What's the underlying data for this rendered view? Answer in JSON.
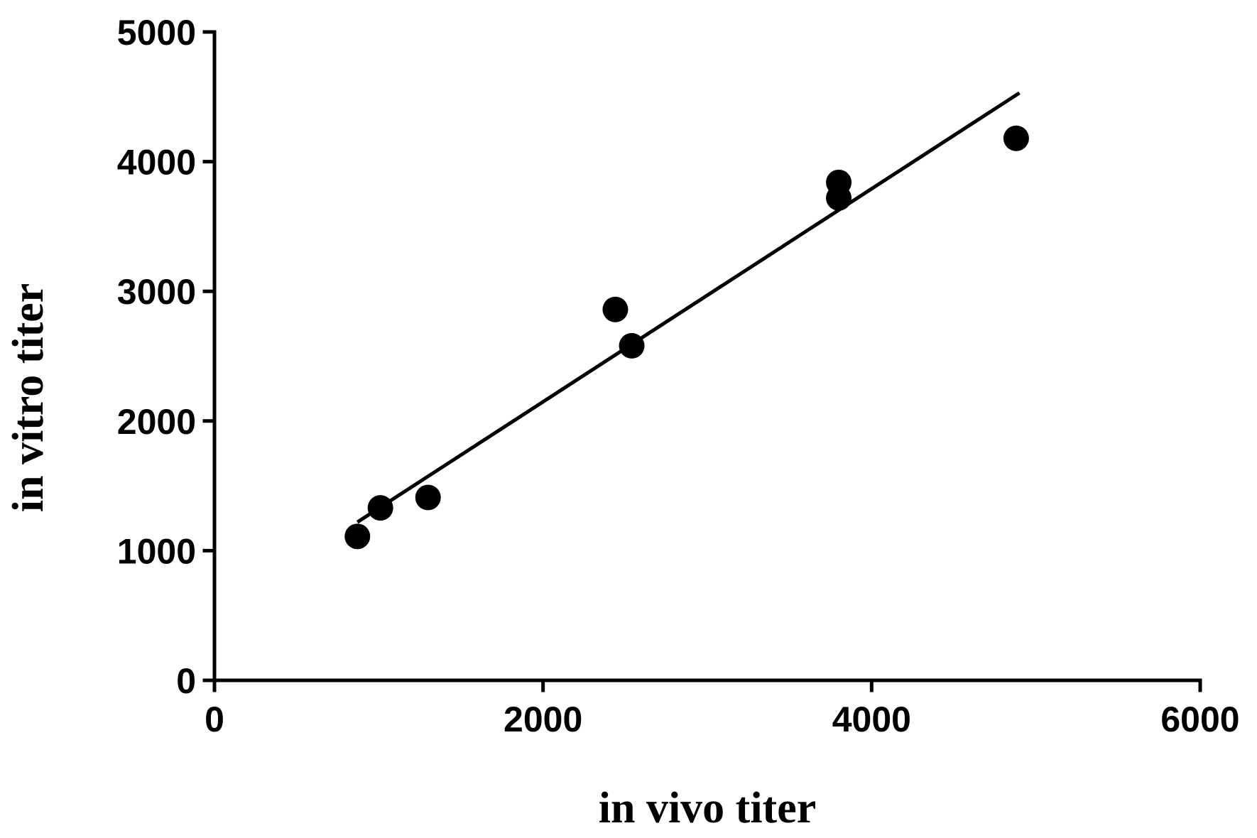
{
  "chart_data": {
    "type": "scatter",
    "xlabel": "in vivo titer",
    "ylabel": "in vitro titer",
    "xlim": [
      0,
      6000
    ],
    "ylim": [
      0,
      5000
    ],
    "x_ticks": [
      0,
      2000,
      4000,
      6000
    ],
    "y_ticks": [
      0,
      1000,
      2000,
      3000,
      4000,
      5000
    ],
    "x_tick_labels": [
      "0",
      "2000",
      "4000",
      "6000"
    ],
    "y_tick_labels": [
      "0",
      "1000",
      "2000",
      "3000",
      "4000",
      "5000"
    ],
    "grid": false,
    "series": [
      {
        "points": [
          {
            "x": 870,
            "y": 1110
          },
          {
            "x": 1010,
            "y": 1330
          },
          {
            "x": 1300,
            "y": 1410
          },
          {
            "x": 2440,
            "y": 2860
          },
          {
            "x": 2540,
            "y": 2580
          },
          {
            "x": 3800,
            "y": 3840
          },
          {
            "x": 3800,
            "y": 3720
          },
          {
            "x": 4880,
            "y": 4180
          }
        ],
        "color": "#000000"
      }
    ],
    "fit_line": {
      "x": [
        870,
        4900
      ],
      "y": [
        1220,
        4530
      ],
      "color": "#000000"
    }
  }
}
